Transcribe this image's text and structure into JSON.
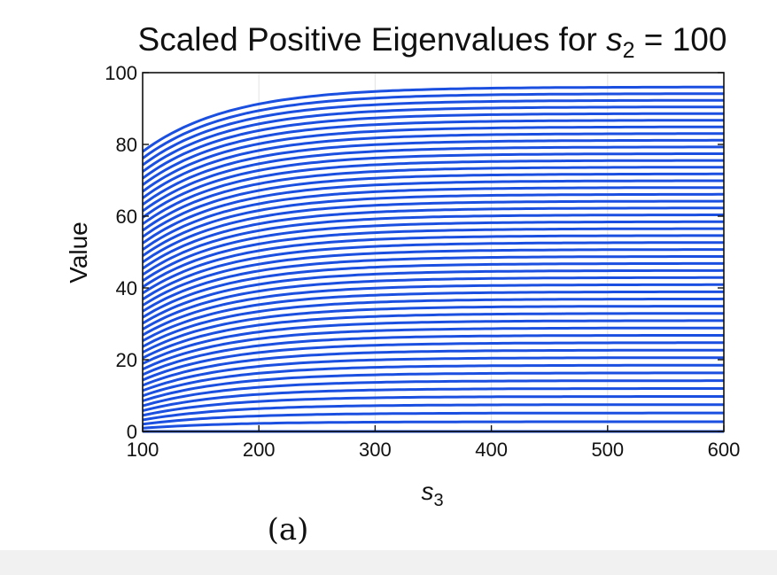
{
  "chart_data": {
    "type": "line",
    "title": {
      "main": "Scaled Positive Eigenvalues for ",
      "var": "s",
      "sub": "2",
      "rest": " = 100"
    },
    "xlabel": {
      "var": "s",
      "sub": "3"
    },
    "ylabel": "Value",
    "xlim": [
      100,
      600
    ],
    "ylim": [
      0,
      100
    ],
    "xticks": [
      100,
      200,
      300,
      400,
      500,
      600
    ],
    "yticks": [
      0,
      20,
      40,
      60,
      80,
      100
    ],
    "x_tick_labels": [
      "100",
      "200",
      "300",
      "400",
      "500",
      "600"
    ],
    "y_tick_labels": [
      "0",
      "20",
      "40",
      "60",
      "80",
      "100"
    ],
    "grid": "vertical",
    "line_color": "#1a4fe0",
    "series_description": "49 curves, each rising quickly from x=100 and flattening toward an asymptote",
    "curve_count": 49,
    "top_curve_start": 78,
    "top_curve_end": 96,
    "caption": "(a)"
  }
}
